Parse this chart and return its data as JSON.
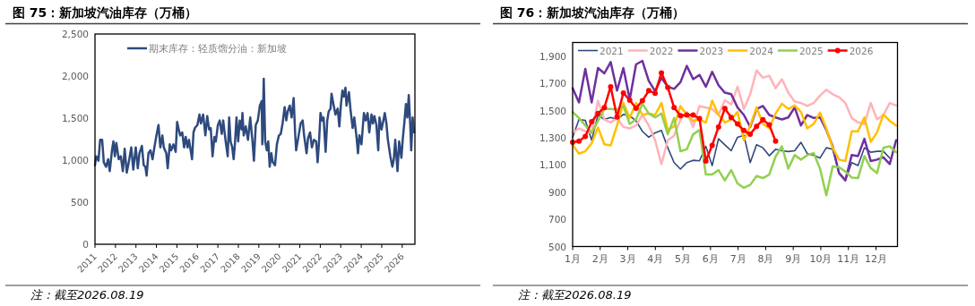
{
  "chart_data": [
    {
      "type": "line",
      "title": "图 75：新加坡汽油库存（万桶）",
      "annotations": [
        "注：截至2026.08.19"
      ],
      "legend": "top",
      "xlim": [
        2011,
        2026.62
      ],
      "ylim": [
        0,
        2500
      ],
      "xticks": [
        2011,
        2012,
        2013,
        2014,
        2015,
        2016,
        2017,
        2018,
        2019,
        2020,
        2021,
        2022,
        2023,
        2024,
        2025,
        2026
      ],
      "yticks": [
        0,
        500,
        {
          "value": 1000,
          "label": "1,000"
        },
        {
          "value": 1500,
          "label": "1,500"
        },
        {
          "value": 2000,
          "label": "2,000"
        },
        {
          "value": 2500,
          "label": "2,500"
        }
      ],
      "x": [
        2011.0,
        2011.06,
        2011.17,
        2011.25,
        2011.35,
        2011.43,
        2011.54,
        2011.64,
        2011.72,
        2011.83,
        2011.9,
        2011.97,
        2012.04,
        2012.16,
        2012.26,
        2012.36,
        2012.45,
        2012.55,
        2012.65,
        2012.77,
        2012.87,
        2012.99,
        2013.09,
        2013.17,
        2013.29,
        2013.38,
        2013.46,
        2013.52,
        2013.61,
        2013.71,
        2013.81,
        2013.9,
        2014.0,
        2014.1,
        2014.19,
        2014.29,
        2014.36,
        2014.48,
        2014.55,
        2014.65,
        2014.72,
        2014.83,
        2014.94,
        2015.01,
        2015.09,
        2015.16,
        2015.26,
        2015.35,
        2015.43,
        2015.52,
        2015.59,
        2015.74,
        2015.81,
        2015.88,
        2016.0,
        2016.1,
        2016.17,
        2016.28,
        2016.39,
        2016.48,
        2016.57,
        2016.65,
        2016.74,
        2016.83,
        2016.9,
        2017.0,
        2017.09,
        2017.19,
        2017.26,
        2017.38,
        2017.48,
        2017.55,
        2017.62,
        2017.7,
        2017.77,
        2017.84,
        2017.91,
        2017.99,
        2018.07,
        2018.16,
        2018.2,
        2018.26,
        2018.36,
        2018.47,
        2018.58,
        2018.69,
        2018.76,
        2018.85,
        2018.95,
        2019.05,
        2019.14,
        2019.17,
        2019.24,
        2019.31,
        2019.39,
        2019.46,
        2019.53,
        2019.61,
        2019.68,
        2019.79,
        2019.88,
        2019.98,
        2020.07,
        2020.16,
        2020.26,
        2020.34,
        2020.41,
        2020.51,
        2020.6,
        2020.7,
        2020.77,
        2020.82,
        2020.92,
        2021.04,
        2021.14,
        2021.21,
        2021.33,
        2021.4,
        2021.5,
        2021.59,
        2021.69,
        2021.8,
        2021.87,
        2021.94,
        2022.01,
        2022.09,
        2022.16,
        2022.26,
        2022.34,
        2022.41,
        2022.5,
        2022.55,
        2022.64,
        2022.74,
        2022.85,
        2022.93,
        2023.01,
        2023.08,
        2023.15,
        2023.23,
        2023.28,
        2023.4,
        2023.47,
        2023.58,
        2023.66,
        2023.77,
        2023.84,
        2023.91,
        2024.01,
        2024.13,
        2024.22,
        2024.31,
        2024.39,
        2024.5,
        2024.57,
        2024.64,
        2024.74,
        2024.83,
        2024.89,
        2024.99,
        2025.08,
        2025.15,
        2025.23,
        2025.3,
        2025.42,
        2025.52,
        2025.59,
        2025.66,
        2025.77,
        2025.85,
        2025.96,
        2026.03,
        2026.1,
        2026.18,
        2026.25,
        2026.32,
        2026.39,
        2026.44,
        2026.51,
        2026.58
      ],
      "series": [
        {
          "name": "期末库存：轻质馏分油：新加坡",
          "color": "#2e4a7d",
          "values": [
            940,
            1046,
            993,
            1241,
            1241,
            975,
            922,
            1011,
            869,
            1117,
            1223,
            1046,
            1206,
            1011,
            1046,
            869,
            1135,
            851,
            975,
            1152,
            887,
            1152,
            904,
            1082,
            1170,
            940,
            922,
            816,
            1082,
            1117,
            1011,
            1152,
            1294,
            1418,
            1152,
            1294,
            1152,
            1082,
            904,
            1188,
            1117,
            1188,
            1099,
            1454,
            1365,
            1294,
            1330,
            1152,
            1276,
            1152,
            1241,
            1011,
            1330,
            1383,
            1418,
            1543,
            1436,
            1543,
            1294,
            1525,
            1365,
            1383,
            1046,
            1276,
            1223,
            1418,
            1472,
            1312,
            1472,
            1223,
            1046,
            1507,
            1223,
            1152,
            1011,
            1223,
            1507,
            1223,
            1472,
            1365,
            1560,
            1294,
            1401,
            1241,
            1507,
            1223,
            993,
            1418,
            1472,
            1649,
            1702,
            1188,
            1968,
            1223,
            1117,
            1223,
            922,
            1082,
            975,
            940,
            1188,
            1294,
            1312,
            1436,
            1631,
            1472,
            1578,
            1649,
            1507,
            1738,
            1330,
            1117,
            1259,
            1436,
            1472,
            1294,
            1082,
            1259,
            1330,
            1152,
            1241,
            1223,
            975,
            1223,
            1560,
            1472,
            1507,
            1099,
            1472,
            1578,
            1613,
            1791,
            1667,
            1543,
            1613,
            1401,
            1667,
            1826,
            1755,
            1862,
            1649,
            1808,
            1613,
            1383,
            1507,
            1276,
            1082,
            1294,
            1188,
            1560,
            1472,
            1560,
            1330,
            1543,
            1436,
            1525,
            1418,
            1117,
            1507,
            1365,
            1472,
            1560,
            1436,
            1241,
            1046,
            922,
            1011,
            1241,
            869,
            1223,
            1028,
            1259,
            1436,
            1667,
            1507,
            1773,
            1436,
            1117,
            1507,
            1330
          ]
        }
      ]
    },
    {
      "type": "line",
      "title": "图 76：新加坡汽油库存（万桶）",
      "annotations": [
        "注：截至2026.08.19"
      ],
      "legend": "top",
      "xlim": [
        1,
        12.78
      ],
      "ylim": [
        500,
        2000
      ],
      "xticks": [
        {
          "value": 1,
          "label": "1月"
        },
        {
          "value": 2,
          "label": "2月"
        },
        {
          "value": 3,
          "label": "3月"
        },
        {
          "value": 4,
          "label": "4月"
        },
        {
          "value": 5,
          "label": "5月"
        },
        {
          "value": 6,
          "label": "6月"
        },
        {
          "value": 7,
          "label": "7月"
        },
        {
          "value": 8,
          "label": "8月"
        },
        {
          "value": 9,
          "label": "9月"
        },
        {
          "value": 10,
          "label": "10月"
        },
        {
          "value": 11,
          "label": "11月"
        },
        {
          "value": 12,
          "label": "12月"
        }
      ],
      "yticks": [
        500,
        700,
        900,
        {
          "value": 1100,
          "label": "1,100"
        },
        {
          "value": 1300,
          "label": "1,300"
        },
        {
          "value": 1500,
          "label": "1,500"
        },
        {
          "value": 1700,
          "label": "1,700"
        },
        {
          "value": 1900,
          "label": "1,900"
        }
      ],
      "x": [
        1,
        1.23,
        1.46,
        1.69,
        1.92,
        2.15,
        2.38,
        2.61,
        2.84,
        3.07,
        3.3,
        3.53,
        3.76,
        3.99,
        4.22,
        4.45,
        4.68,
        4.91,
        5.14,
        5.37,
        5.6,
        5.83,
        6.06,
        6.29,
        6.52,
        6.75,
        6.98,
        7.21,
        7.44,
        7.67,
        7.9,
        8.13,
        8.36,
        8.59,
        8.82,
        9.05,
        9.28,
        9.51,
        9.74,
        9.97,
        10.2,
        10.43,
        10.66,
        10.89,
        11.12,
        11.35,
        11.58,
        11.81,
        12.04,
        12.27,
        12.5,
        12.73
      ],
      "series": [
        {
          "name": "2021",
          "color": "#2e4a7d",
          "values": [
            1303,
            1434,
            1427,
            1281,
            1467,
            1434,
            1449,
            1434,
            1471,
            1462,
            1423,
            1347,
            1303,
            1336,
            1353,
            1226,
            1117,
            1069,
            1117,
            1134,
            1130,
            1237,
            1095,
            1292,
            1248,
            1204,
            1303,
            1318,
            1117,
            1248,
            1226,
            1167,
            1215,
            1204,
            1198,
            1204,
            1266,
            1183,
            1172,
            1150,
            1226,
            1215,
            1040,
            986,
            1117,
            1095,
            1226,
            1193,
            1200,
            1200,
            1150,
            null
          ]
        },
        {
          "name": "2022",
          "color": "#ffb3b8",
          "values": [
            1336,
            1368,
            1347,
            1336,
            1572,
            1434,
            1412,
            1445,
            1379,
            1368,
            1390,
            1467,
            1390,
            1281,
            1106,
            1281,
            1314,
            1434,
            1489,
            1379,
            1533,
            1522,
            1511,
            1467,
            1576,
            1544,
            1675,
            1511,
            1620,
            1795,
            1741,
            1756,
            1664,
            1730,
            1631,
            1566,
            1555,
            1533,
            1555,
            1609,
            1653,
            1620,
            1598,
            1555,
            1445,
            1412,
            1401,
            1555,
            1434,
            1467,
            1555,
            1537
          ]
        },
        {
          "name": "2023",
          "color": "#7030a0",
          "values": [
            1664,
            1559,
            1806,
            1559,
            1812,
            1773,
            1856,
            1646,
            1812,
            1581,
            1839,
            1865,
            1718,
            1642,
            1740,
            1675,
            1659,
            1708,
            1828,
            1730,
            1762,
            1675,
            1784,
            1686,
            1631,
            1620,
            1522,
            1467,
            1379,
            1511,
            1533,
            1467,
            1449,
            1434,
            1449,
            1522,
            1390,
            1467,
            1445,
            1449,
            1357,
            1237,
            1040,
            986,
            1172,
            1165,
            1292,
            1128,
            1139,
            1156,
            1106,
            1281
          ]
        },
        {
          "name": "2024",
          "color": "#ffc000",
          "values": [
            1248,
            1183,
            1200,
            1259,
            1375,
            1252,
            1244,
            1390,
            1555,
            1445,
            1555,
            1467,
            1478,
            1467,
            1555,
            1357,
            1384,
            1533,
            1467,
            1423,
            1434,
            1412,
            1572,
            1467,
            1412,
            1434,
            1489,
            1281,
            1390,
            1522,
            1401,
            1368,
            1478,
            1550,
            1511,
            1537,
            1489,
            1368,
            1401,
            1484,
            1368,
            1226,
            1139,
            1128,
            1347,
            1347,
            1449,
            1270,
            1340,
            1471,
            1423,
            1390
          ]
        },
        {
          "name": "2025",
          "color": "#92d050",
          "values": [
            1489,
            1445,
            1390,
            1336,
            1423,
            1511,
            1511,
            1506,
            1533,
            1401,
            1434,
            1550,
            1478,
            1449,
            1478,
            1325,
            1445,
            1200,
            1215,
            1325,
            1357,
            1029,
            1029,
            1062,
            986,
            1062,
            964,
            931,
            953,
            1018,
            1003,
            1029,
            1161,
            1237,
            1073,
            1172,
            1139,
            1172,
            1187,
            1073,
            876,
            1088,
            1084,
            1051,
            1007,
            1003,
            1165,
            1077,
            1040,
            1226,
            1237,
            1193
          ]
        },
        {
          "name": "2026",
          "color": "#ff0000",
          "marker": "circle",
          "values": [
            1266,
            1274,
            1309,
            1417,
            1478,
            1522,
            1675,
            1452,
            1629,
            1576,
            1517,
            1572,
            1646,
            1627,
            1777,
            1670,
            1522,
            1462,
            1467,
            1467,
            1441,
            1128,
            1244,
            1379,
            1515,
            1449,
            1401,
            1353,
            1325,
            1384,
            1432,
            1395,
            1274,
            null,
            null,
            null,
            null,
            null,
            null,
            null,
            null,
            null,
            null,
            null,
            null,
            null,
            null,
            null,
            null,
            null,
            null,
            null
          ]
        }
      ]
    }
  ]
}
